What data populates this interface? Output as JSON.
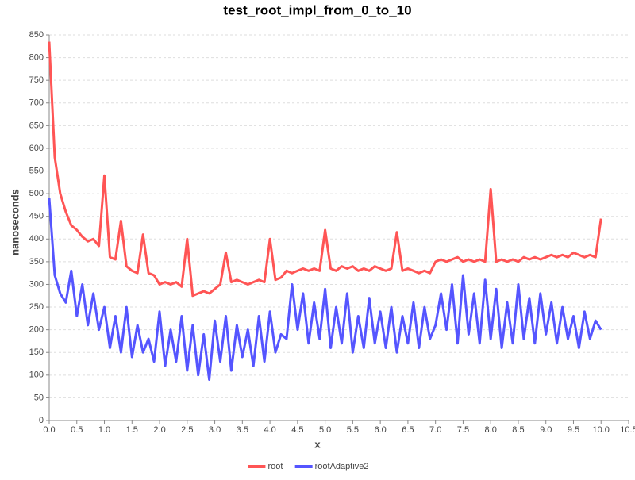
{
  "chart_data": {
    "type": "line",
    "title": "test_root_impl_from_0_to_10",
    "x_label": "x",
    "y_label": "nanoseconds",
    "x": [
      0.0,
      0.1,
      0.2,
      0.3,
      0.4,
      0.5,
      0.6,
      0.7,
      0.8,
      0.9,
      1.0,
      1.1,
      1.2,
      1.3,
      1.4,
      1.5,
      1.6,
      1.7,
      1.8,
      1.9,
      2.0,
      2.1,
      2.2,
      2.3,
      2.4,
      2.5,
      2.6,
      2.7,
      2.8,
      2.9,
      3.0,
      3.1,
      3.2,
      3.3,
      3.4,
      3.5,
      3.6,
      3.7,
      3.8,
      3.9,
      4.0,
      4.1,
      4.2,
      4.3,
      4.4,
      4.5,
      4.6,
      4.7,
      4.8,
      4.9,
      5.0,
      5.1,
      5.2,
      5.3,
      5.4,
      5.5,
      5.6,
      5.7,
      5.8,
      5.9,
      6.0,
      6.1,
      6.2,
      6.3,
      6.4,
      6.5,
      6.6,
      6.7,
      6.8,
      6.9,
      7.0,
      7.1,
      7.2,
      7.3,
      7.4,
      7.5,
      7.6,
      7.7,
      7.8,
      7.9,
      8.0,
      8.1,
      8.2,
      8.3,
      8.4,
      8.5,
      8.6,
      8.7,
      8.8,
      8.9,
      9.0,
      9.1,
      9.2,
      9.3,
      9.4,
      9.5,
      9.6,
      9.7,
      9.8,
      9.9,
      10.0
    ],
    "series": [
      {
        "name": "root",
        "color": "#ff5555",
        "values": [
          835,
          580,
          500,
          460,
          430,
          420,
          405,
          395,
          400,
          385,
          540,
          360,
          355,
          440,
          340,
          330,
          325,
          410,
          325,
          320,
          300,
          305,
          300,
          305,
          295,
          400,
          275,
          280,
          285,
          280,
          290,
          300,
          370,
          305,
          310,
          305,
          300,
          305,
          310,
          305,
          400,
          310,
          315,
          330,
          325,
          330,
          335,
          330,
          335,
          330,
          420,
          335,
          330,
          340,
          335,
          340,
          330,
          335,
          330,
          340,
          335,
          330,
          335,
          415,
          330,
          335,
          330,
          325,
          330,
          325,
          350,
          355,
          350,
          355,
          360,
          350,
          355,
          350,
          355,
          350,
          510,
          350,
          355,
          350,
          355,
          350,
          360,
          355,
          360,
          355,
          360,
          365,
          360,
          365,
          360,
          370,
          365,
          360,
          365,
          360,
          445
        ]
      },
      {
        "name": "rootAdaptive2",
        "color": "#5555ff",
        "values": [
          490,
          320,
          280,
          260,
          330,
          230,
          300,
          210,
          280,
          200,
          250,
          160,
          230,
          150,
          250,
          140,
          210,
          150,
          180,
          130,
          240,
          120,
          200,
          130,
          230,
          110,
          210,
          100,
          190,
          90,
          220,
          130,
          230,
          110,
          210,
          140,
          200,
          120,
          230,
          130,
          240,
          150,
          190,
          180,
          300,
          200,
          280,
          170,
          260,
          180,
          290,
          160,
          250,
          170,
          280,
          150,
          230,
          160,
          270,
          170,
          240,
          160,
          250,
          150,
          230,
          170,
          260,
          160,
          250,
          180,
          210,
          280,
          200,
          300,
          170,
          320,
          190,
          280,
          170,
          310,
          180,
          290,
          160,
          260,
          170,
          300,
          180,
          270,
          170,
          280,
          190,
          260,
          170,
          250,
          180,
          230,
          160,
          240,
          180,
          220,
          200
        ]
      }
    ],
    "xlim": [
      0,
      10.5
    ],
    "ylim": [
      0,
      850
    ],
    "xticks": [
      {
        "value": 0,
        "label": "0.0"
      },
      0.5,
      {
        "value": 1,
        "label": "1.0"
      },
      1.5,
      {
        "value": 2,
        "label": "2.0"
      },
      2.5,
      {
        "value": 3,
        "label": "3.0"
      },
      3.5,
      {
        "value": 4,
        "label": "4.0"
      },
      4.5,
      {
        "value": 5,
        "label": "5.0"
      },
      5.5,
      {
        "value": 6,
        "label": "6.0"
      },
      6.5,
      {
        "value": 7,
        "label": "7.0"
      },
      7.5,
      {
        "value": 8,
        "label": "8.0"
      },
      8.5,
      {
        "value": 9,
        "label": "9.0"
      },
      9.5,
      {
        "value": 10,
        "label": "10.0"
      },
      10.5
    ],
    "yticks": [
      0,
      50,
      100,
      150,
      200,
      250,
      300,
      350,
      400,
      450,
      500,
      550,
      600,
      650,
      700,
      750,
      800,
      850
    ],
    "grid": true,
    "legend": "bottom"
  }
}
